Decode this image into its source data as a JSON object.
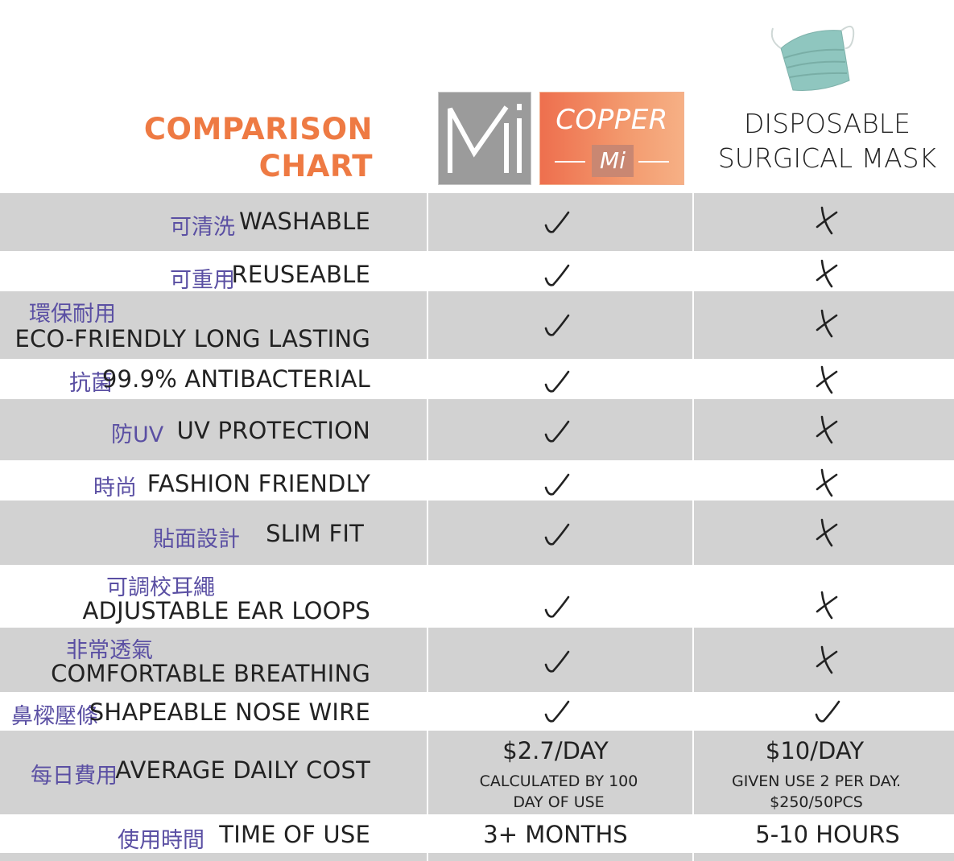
{
  "header": {
    "title_line1": "COMPARISON",
    "title_line2": "CHART",
    "logo_mi_text": "Mi",
    "logo_copper_word": "COPPER",
    "logo_copper_sub": "Mi",
    "col3_line1": "DISPOSABLE",
    "col3_line2": "SURGICAL MASK"
  },
  "colors": {
    "title": "#ee7a43",
    "chinese": "#5a4fa3",
    "row_gray": "#d2d2d2"
  },
  "rows": [
    {
      "zh": "可清洗",
      "en": "WASHABLE",
      "copper": "check",
      "surgical": "cross"
    },
    {
      "zh": "可重用",
      "en": "REUSEABLE",
      "copper": "check",
      "surgical": "cross"
    },
    {
      "zh": "環保耐用",
      "en": "ECO-FRIENDLY LONG LASTING",
      "copper": "check",
      "surgical": "cross"
    },
    {
      "zh": "抗菌",
      "en": "99.9% ANTIBACTERIAL",
      "copper": "check",
      "surgical": "cross"
    },
    {
      "zh": "防UV",
      "en": "UV PROTECTION",
      "copper": "check",
      "surgical": "cross"
    },
    {
      "zh": "時尚",
      "en": "FASHION FRIENDLY",
      "copper": "check",
      "surgical": "cross"
    },
    {
      "zh": "貼面設計",
      "en": "SLIM FIT",
      "copper": "check",
      "surgical": "cross"
    },
    {
      "zh": "可調校耳繩",
      "en": "ADJUSTABLE EAR LOOPS",
      "copper": "check",
      "surgical": "cross"
    },
    {
      "zh": "非常透氣",
      "en": "COMFORTABLE BREATHING",
      "copper": "check",
      "surgical": "cross"
    },
    {
      "zh": "鼻樑壓條",
      "en": "SHAPEABLE NOSE WIRE",
      "copper": "check",
      "surgical": "check"
    }
  ],
  "cost": {
    "zh": "每日費用",
    "en": "AVERAGE DAILY COST",
    "copper_main": "$2.7/DAY",
    "copper_sub1": "CALCULATED BY 100",
    "copper_sub2": "DAY OF USE",
    "surgical_main": "$10/DAY",
    "surgical_sub1": "GIVEN USE 2 PER DAY.",
    "surgical_sub2": "$250/50PCS"
  },
  "time": {
    "zh": "使用時間",
    "en": "TIME OF USE",
    "copper": "3+ MONTHS",
    "surgical": "5-10 HOURS"
  }
}
